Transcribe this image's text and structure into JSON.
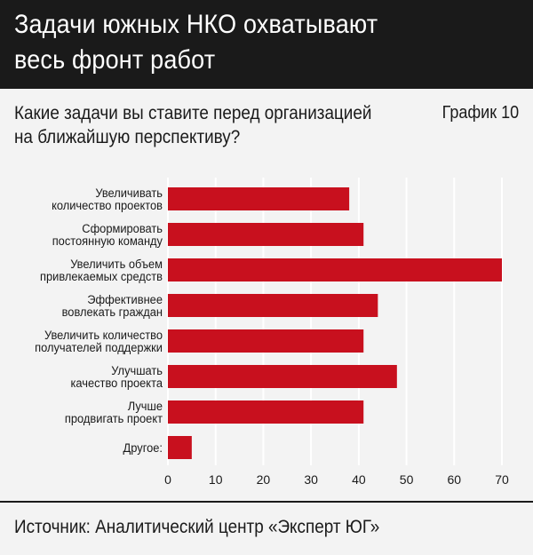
{
  "header": {
    "title_line1": "Задачи южных НКО охватывают",
    "title_line2": "весь фронт работ"
  },
  "question": {
    "line1": "Какие задачи вы ставите перед организацией",
    "line2": "на ближайшую перспективу?"
  },
  "chart_label": "График 10",
  "colors": {
    "bar": "#c8101e",
    "header_bg": "#1a1a1a",
    "panel_bg": "#f3f3f3",
    "gridline": "#ffffff"
  },
  "chart_data": {
    "type": "bar",
    "orientation": "horizontal",
    "categories": [
      [
        "Увеличивать",
        "количество проектов"
      ],
      [
        "Сформировать",
        "постоянную команду"
      ],
      [
        "Увеличить объем",
        "привлекаемых средств"
      ],
      [
        "Эффективнее",
        "вовлекать граждан"
      ],
      [
        "Увеличить количество",
        "получателей поддержки"
      ],
      [
        "Улучшать",
        "качество проекта"
      ],
      [
        "Лучше",
        "продвигать проект"
      ],
      [
        "Другое:"
      ]
    ],
    "values": [
      38,
      41,
      70,
      44,
      41,
      48,
      41,
      5
    ],
    "xlim": [
      0,
      70
    ],
    "xticks": [
      0,
      10,
      20,
      30,
      40,
      50,
      60,
      70
    ],
    "grid": true,
    "title": "",
    "xlabel": "",
    "ylabel": ""
  },
  "footer": {
    "source": "Источник: Аналитический центр «Эксперт ЮГ»"
  }
}
